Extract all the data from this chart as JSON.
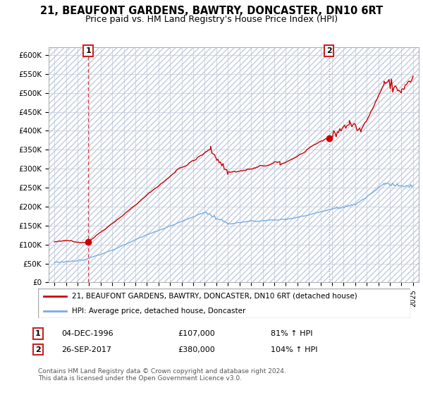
{
  "title": "21, BEAUFONT GARDENS, BAWTRY, DONCASTER, DN10 6RT",
  "subtitle": "Price paid vs. HM Land Registry's House Price Index (HPI)",
  "ylim": [
    0,
    620000
  ],
  "yticks": [
    0,
    50000,
    100000,
    150000,
    200000,
    250000,
    300000,
    350000,
    400000,
    450000,
    500000,
    550000,
    600000
  ],
  "ytick_labels": [
    "£0",
    "£50K",
    "£100K",
    "£150K",
    "£200K",
    "£250K",
    "£300K",
    "£350K",
    "£400K",
    "£450K",
    "£500K",
    "£550K",
    "£600K"
  ],
  "xlim_start": 1993.5,
  "xlim_end": 2025.5,
  "sale1_x": 1996.92,
  "sale1_y": 107000,
  "sale2_x": 2017.73,
  "sale2_y": 380000,
  "sale1_label": "1",
  "sale2_label": "2",
  "red_line_color": "#cc0000",
  "blue_line_color": "#7aade0",
  "marker_color": "#cc0000",
  "sale1_vline_color": "#dd4444",
  "sale2_vline_color": "#aaaaaa",
  "background_color": "#ffffff",
  "grid_color": "#c0c8d8",
  "hatch_color": "#c8d4e8",
  "legend_entry1": "21, BEAUFONT GARDENS, BAWTRY, DONCASTER, DN10 6RT (detached house)",
  "legend_entry2": "HPI: Average price, detached house, Doncaster",
  "table_row1": [
    "1",
    "04-DEC-1996",
    "£107,000",
    "81% ↑ HPI"
  ],
  "table_row2": [
    "2",
    "26-SEP-2017",
    "£380,000",
    "104% ↑ HPI"
  ],
  "footnote": "Contains HM Land Registry data © Crown copyright and database right 2024.\nThis data is licensed under the Open Government Licence v3.0.",
  "title_fontsize": 10.5,
  "subtitle_fontsize": 9,
  "axis_fontsize": 7.5,
  "legend_fontsize": 8,
  "table_fontsize": 8,
  "footnote_fontsize": 6.5
}
